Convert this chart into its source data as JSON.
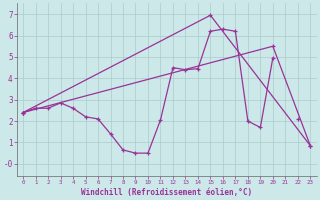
{
  "bg_color": "#cce8e8",
  "grid_color": "#aacccc",
  "line_color": "#993399",
  "xlabel": "Windchill (Refroidissement éolien,°C)",
  "xlim": [
    -0.5,
    23.5
  ],
  "ylim": [
    -0.55,
    7.5
  ],
  "xticks": [
    0,
    1,
    2,
    3,
    4,
    5,
    6,
    7,
    8,
    9,
    10,
    11,
    12,
    13,
    14,
    15,
    16,
    17,
    18,
    19,
    20,
    21,
    22,
    23
  ],
  "yticks": [
    0,
    1,
    2,
    3,
    4,
    5,
    6,
    7
  ],
  "ytick_labels": [
    "-0",
    "1",
    "2",
    "3",
    "4",
    "5",
    "6",
    "7"
  ],
  "line1_x": [
    0,
    1,
    2,
    3,
    4,
    5,
    6,
    7,
    8,
    9,
    10,
    11,
    12,
    13,
    14,
    15,
    16,
    17,
    18,
    19,
    20,
    21,
    22,
    23
  ],
  "line1_y": [
    2.4,
    2.6,
    2.6,
    2.85,
    2.6,
    2.2,
    2.1,
    1.4,
    0.65,
    0.5,
    0.5,
    2.05,
    4.5,
    4.4,
    4.45,
    6.2,
    6.3,
    6.2,
    2.0,
    1.7,
    4.95,
    null,
    2.1,
    null
  ],
  "line2_x": [
    0,
    15,
    23
  ],
  "line2_y": [
    2.4,
    6.95,
    0.85
  ],
  "line3_x": [
    0,
    20,
    23
  ],
  "line3_y": [
    2.4,
    5.5,
    0.85
  ]
}
